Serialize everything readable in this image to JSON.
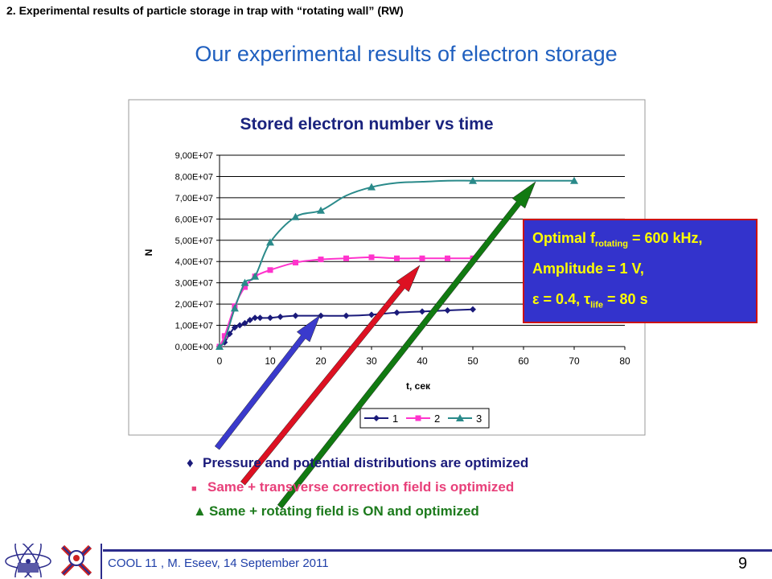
{
  "header": {
    "section_title": "2. Experimental results of particle storage in trap with “rotating wall” (RW)",
    "main_title": "Our experimental results of electron storage"
  },
  "chart_data": {
    "type": "line",
    "title": "Stored electron number vs time",
    "xlabel": "t, сек",
    "ylabel": "N",
    "xlim": [
      0,
      80
    ],
    "ylim": [
      0,
      90000000
    ],
    "x_ticks": [
      "0",
      "10",
      "20",
      "30",
      "40",
      "50",
      "60",
      "70",
      "80"
    ],
    "y_ticks": [
      "0,00E+00",
      "1,00E+07",
      "2,00E+07",
      "3,00E+07",
      "4,00E+07",
      "5,00E+07",
      "6,00E+07",
      "7,00E+07",
      "8,00E+07",
      "9,00E+07"
    ],
    "grid": "horizontal",
    "legend_position": "bottom",
    "series": [
      {
        "name": "1",
        "color": "#1a1a7a",
        "marker": "diamond",
        "points": [
          [
            0,
            0
          ],
          [
            1,
            2000000
          ],
          [
            2,
            6000000
          ],
          [
            3,
            9000000
          ],
          [
            4,
            10000000
          ],
          [
            5,
            11000000
          ],
          [
            6,
            12500000
          ],
          [
            7,
            13500000
          ],
          [
            8,
            13500000
          ],
          [
            10,
            13500000
          ],
          [
            12,
            14000000
          ],
          [
            15,
            14500000
          ],
          [
            20,
            14500000
          ],
          [
            25,
            14500000
          ],
          [
            30,
            15000000
          ],
          [
            35,
            16000000
          ],
          [
            40,
            16500000
          ],
          [
            45,
            17000000
          ],
          [
            50,
            17500000
          ]
        ]
      },
      {
        "name": "2",
        "color": "#ff33cc",
        "marker": "square",
        "points": [
          [
            0,
            0
          ],
          [
            1,
            5000000
          ],
          [
            3,
            19000000
          ],
          [
            5,
            28000000
          ],
          [
            7,
            33000000
          ],
          [
            10,
            36000000
          ],
          [
            15,
            39500000
          ],
          [
            20,
            41000000
          ],
          [
            25,
            41500000
          ],
          [
            30,
            42000000
          ],
          [
            35,
            41500000
          ],
          [
            40,
            41500000
          ],
          [
            45,
            41500000
          ],
          [
            50,
            41500000
          ]
        ]
      },
      {
        "name": "3",
        "color": "#2a8a8a",
        "marker": "triangle",
        "points": [
          [
            0,
            0
          ],
          [
            1,
            3000000
          ],
          [
            3,
            18000000
          ],
          [
            5,
            30000000
          ],
          [
            7,
            33000000
          ],
          [
            10,
            49000000
          ],
          [
            15,
            61000000
          ],
          [
            20,
            64000000
          ],
          [
            25,
            71000000
          ],
          [
            30,
            75000000
          ],
          [
            35,
            77000000
          ],
          [
            40,
            77500000
          ],
          [
            45,
            78000000
          ],
          [
            50,
            78000000
          ],
          [
            55,
            78000000
          ],
          [
            60,
            78000000
          ],
          [
            65,
            78000000
          ],
          [
            70,
            78000000
          ]
        ],
        "markers_at": [
          0,
          3,
          5,
          7,
          10,
          15,
          20,
          30,
          50,
          70
        ]
      }
    ]
  },
  "info_box": {
    "line1_prefix": "Optimal f",
    "line1_sub": "rotating",
    "line1_suffix": " = 600 kHz,",
    "line2": "Amplitude = 1 V,",
    "line3_prefix": "ε = 0.4, τ",
    "line3_sub": "life",
    "line3_suffix": " = 80 s"
  },
  "descriptions": {
    "item1_symbol": "♦",
    "item1": "Pressure and potential distributions are optimized",
    "item2_symbol": "■",
    "item2": "Same + transverse correction field is optimized",
    "item3_symbol": "▲",
    "item3": "Same + rotating field is ON and optimized"
  },
  "arrows": {
    "arrow1_color": "#3a3acc",
    "arrow2_color": "#dd1122",
    "arrow3_color": "#117a11"
  },
  "footer": {
    "text": "COOL 11 , M. Eseev, 14 September 2011",
    "page_number": "9"
  }
}
